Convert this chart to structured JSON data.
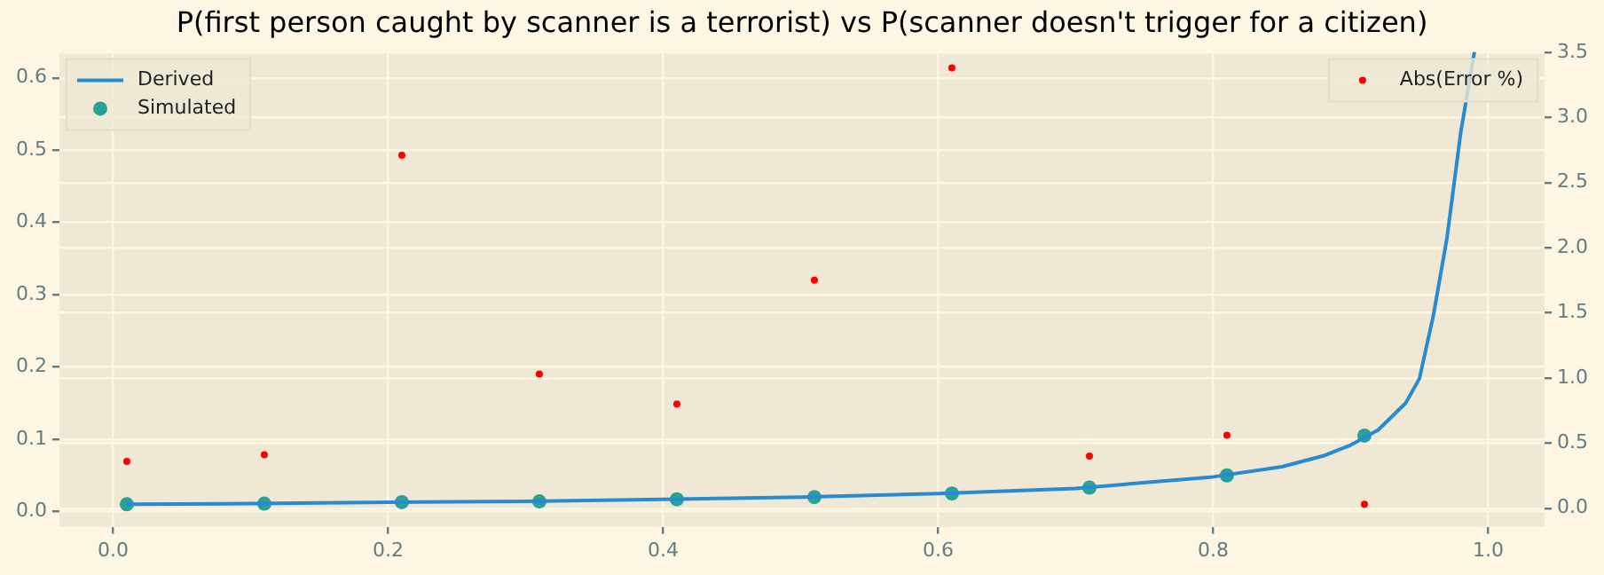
{
  "chart_data": {
    "type": "line",
    "title": "P(first person caught by scanner is a terrorist) vs P(scanner doesn't trigger for a citizen)",
    "xlim": [
      -0.039,
      1.041
    ],
    "xticks": [
      {
        "value": 0,
        "label": "0.0"
      },
      0.2,
      0.4,
      0.6,
      0.8,
      {
        "value": 1,
        "label": "1.0"
      }
    ],
    "ylim": [
      -0.021,
      0.636
    ],
    "yticks": [
      {
        "value": 0,
        "label": "0.0"
      },
      0.1,
      0.2,
      0.3,
      0.4,
      0.5,
      0.6
    ],
    "y2lim": [
      -0.142,
      3.504
    ],
    "y2ticks": [
      {
        "value": 0,
        "label": "0.0"
      },
      0.5,
      {
        "value": 1,
        "label": "1.0"
      },
      1.5,
      {
        "value": 2,
        "label": "2.0"
      },
      2.5,
      {
        "value": 3,
        "label": "3.0"
      },
      3.5
    ],
    "grid": true,
    "legend": "top left",
    "series": [
      {
        "name": "Derived",
        "color": "#268bd2",
        "marker": "none",
        "x": [
          0.01,
          0.1,
          0.2,
          0.3,
          0.4,
          0.5,
          0.6,
          0.7,
          0.8,
          0.85,
          0.88,
          0.9,
          0.92,
          0.94,
          0.95,
          0.96,
          0.97,
          0.98,
          0.99
        ],
        "values": [
          0.01,
          0.011,
          0.013,
          0.014,
          0.017,
          0.02,
          0.025,
          0.032,
          0.048,
          0.062,
          0.077,
          0.092,
          0.113,
          0.15,
          0.184,
          0.27,
          0.378,
          0.524,
          0.636
        ]
      },
      {
        "name": "Simulated",
        "type": "scatter",
        "color": "#2aa198",
        "marker": "circle",
        "x": [
          0.01,
          0.11,
          0.21,
          0.31,
          0.41,
          0.51,
          0.61,
          0.71,
          0.81,
          0.91
        ],
        "values": [
          0.01,
          0.011,
          0.013,
          0.014,
          0.017,
          0.02,
          0.025,
          0.033,
          0.05,
          0.105
        ]
      },
      {
        "name": "Abs(Error %)",
        "type": "scatter",
        "axis": "y2",
        "color": "#ff0000",
        "marker": "circle",
        "x": [
          0.01,
          0.11,
          0.21,
          0.31,
          0.41,
          0.51,
          0.61,
          0.71,
          0.81,
          0.91
        ],
        "values": [
          0.36,
          0.41,
          2.71,
          1.03,
          0.8,
          1.75,
          3.38,
          0.4,
          0.56,
          0.03
        ]
      }
    ]
  }
}
